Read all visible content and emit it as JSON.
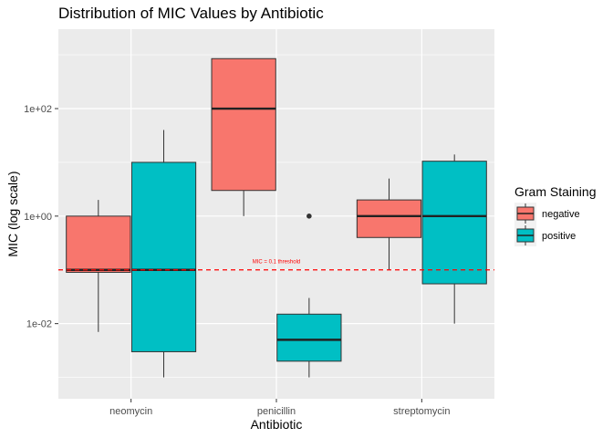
{
  "chart_data": {
    "type": "box",
    "title": "Distribution of MIC Values by Antibiotic",
    "xlabel": "Antibiotic",
    "ylabel": "MIC (log scale)",
    "y_scale": "log10",
    "ylim": [
      0.0004,
      3000
    ],
    "y_ticks": [
      0.01,
      1,
      100
    ],
    "y_tick_labels": [
      "1e-02",
      "1e+00",
      "1e+02"
    ],
    "categories": [
      "neomycin",
      "penicillin",
      "streptomycin"
    ],
    "grid": true,
    "legend": {
      "title": "Gram Staining",
      "position": "right",
      "entries": [
        {
          "name": "negative",
          "color": "#F8766D"
        },
        {
          "name": "positive",
          "color": "#00BFC4"
        }
      ]
    },
    "series": [
      {
        "name": "negative",
        "color": "#F8766D",
        "boxes": [
          {
            "category": "neomycin",
            "min": 0.007,
            "q1": 0.09,
            "median": 0.1,
            "q3": 1.0,
            "max": 2.0,
            "outliers": []
          },
          {
            "category": "penicillin",
            "min": 1.0,
            "q1": 3.0,
            "median": 100,
            "q3": 850,
            "max": 850,
            "outliers": []
          },
          {
            "category": "streptomycin",
            "min": 0.1,
            "q1": 0.4,
            "median": 1.0,
            "q3": 2.0,
            "max": 5.0,
            "outliers": []
          }
        ]
      },
      {
        "name": "positive",
        "color": "#00BFC4",
        "boxes": [
          {
            "category": "neomycin",
            "min": 0.001,
            "q1": 0.003,
            "median": 0.1,
            "q3": 10,
            "max": 40,
            "outliers": []
          },
          {
            "category": "penicillin",
            "min": 0.001,
            "q1": 0.002,
            "median": 0.005,
            "q3": 0.015,
            "max": 0.03,
            "outliers": [
              1.0
            ]
          },
          {
            "category": "streptomycin",
            "min": 0.01,
            "q1": 0.055,
            "median": 1.0,
            "q3": 10.5,
            "max": 14,
            "outliers": []
          }
        ]
      }
    ],
    "reference_line": {
      "y": 0.1,
      "label": "MIC = 0.1 threshold",
      "color": "#FF0000",
      "style": "dashed"
    }
  }
}
